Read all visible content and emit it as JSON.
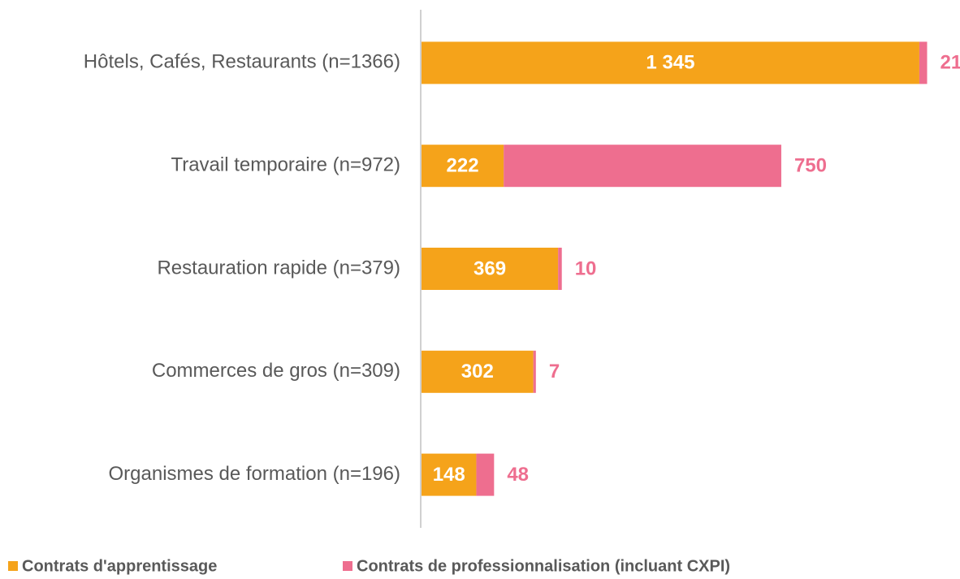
{
  "chart_data": {
    "type": "stacked-barh",
    "categories": [
      "Hôtels, Cafés, Restaurants (n=1366)",
      "Travail temporaire (n=972)",
      "Restauration rapide  (n=379)",
      "Commerces de gros  (n=309)",
      "Organismes de formation  (n=196)"
    ],
    "series": [
      {
        "name": "Contrats d'apprentissage",
        "color": "#F5A31A",
        "values": [
          1345,
          222,
          369,
          302,
          148
        ],
        "value_labels": [
          "1 345",
          "222",
          "369",
          "302",
          "148"
        ]
      },
      {
        "name": "Contrats de professionnalisation (incluant CXPI)",
        "color": "#EE6E8F",
        "values": [
          21,
          750,
          10,
          7,
          48
        ]
      }
    ],
    "xlim": [
      0,
      1400
    ]
  }
}
